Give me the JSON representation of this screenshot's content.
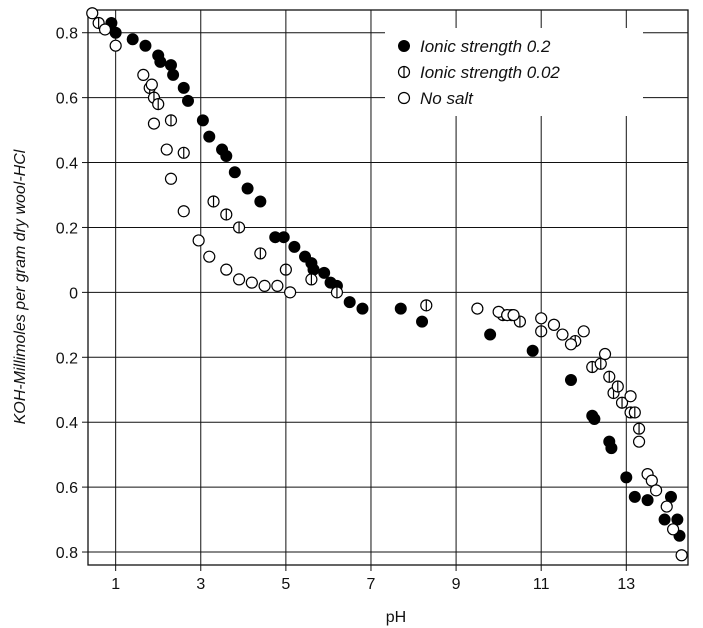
{
  "chart_data": {
    "type": "scatter",
    "xlabel": "pH",
    "ylabel": "KOH-Millimoles per gram dry wool-HCl",
    "xlim": [
      0.35,
      14.45
    ],
    "ylim": [
      -0.84,
      0.87
    ],
    "x_ticks": [
      {
        "value": 1,
        "label": "1"
      },
      {
        "value": 3,
        "label": "3"
      },
      {
        "value": 5,
        "label": "5"
      },
      {
        "value": 7,
        "label": "7"
      },
      {
        "value": 9,
        "label": "9"
      },
      {
        "value": 11,
        "label": "11"
      },
      {
        "value": 13,
        "label": "13"
      }
    ],
    "y_ticks": [
      {
        "value": 0.8,
        "label": "0.8"
      },
      {
        "value": 0.6,
        "label": "0.6"
      },
      {
        "value": 0.4,
        "label": "0.4"
      },
      {
        "value": 0.2,
        "label": "0.2"
      },
      {
        "value": 0,
        "label": "0"
      },
      {
        "value": -0.2,
        "label": "0.2"
      },
      {
        "value": -0.4,
        "label": "0.4"
      },
      {
        "value": -0.6,
        "label": "0.6"
      },
      {
        "value": -0.8,
        "label": "0.8"
      }
    ],
    "grid": true,
    "legend_position": "top-right",
    "series": [
      {
        "name": "Ionic strength 0.2",
        "marker": "filled",
        "x": [
          0.9,
          1.0,
          1.4,
          1.7,
          2.0,
          2.05,
          2.3,
          2.35,
          2.6,
          2.7,
          3.05,
          3.2,
          3.5,
          3.6,
          3.8,
          4.1,
          4.4,
          4.75,
          4.95,
          5.2,
          5.45,
          5.6,
          5.65,
          5.9,
          6.05,
          6.2,
          6.5,
          6.8,
          7.7,
          8.2,
          9.8,
          10.8,
          11.7,
          12.2,
          12.25,
          12.6,
          12.65,
          13.0,
          13.2,
          13.5,
          13.9,
          14.05,
          14.2,
          14.25
        ],
        "y": [
          0.83,
          0.8,
          0.78,
          0.76,
          0.73,
          0.71,
          0.7,
          0.67,
          0.63,
          0.59,
          0.53,
          0.48,
          0.44,
          0.42,
          0.37,
          0.32,
          0.28,
          0.17,
          0.17,
          0.14,
          0.11,
          0.09,
          0.07,
          0.06,
          0.03,
          0.02,
          -0.03,
          -0.05,
          -0.05,
          -0.09,
          -0.13,
          -0.18,
          -0.27,
          -0.38,
          -0.39,
          -0.46,
          -0.48,
          -0.57,
          -0.63,
          -0.64,
          -0.7,
          -0.63,
          -0.7,
          -0.75
        ]
      },
      {
        "name": "Ionic strength 0.02",
        "marker": "half",
        "x": [
          0.6,
          1.8,
          1.9,
          2.0,
          2.3,
          2.6,
          3.3,
          3.6,
          3.9,
          4.4,
          5.0,
          5.6,
          6.2,
          8.3,
          10.1,
          10.3,
          10.5,
          11.0,
          11.3,
          11.8,
          12.2,
          12.4,
          12.6,
          12.7,
          12.8,
          12.9,
          13.1,
          13.2,
          13.3
        ],
        "y": [
          0.83,
          0.63,
          0.6,
          0.58,
          0.53,
          0.43,
          0.28,
          0.24,
          0.2,
          0.12,
          0.07,
          0.04,
          0.0,
          -0.04,
          -0.07,
          -0.07,
          -0.09,
          -0.12,
          -0.1,
          -0.15,
          -0.23,
          -0.22,
          -0.26,
          -0.31,
          -0.29,
          -0.34,
          -0.37,
          -0.37,
          -0.42
        ]
      },
      {
        "name": "No salt",
        "marker": "open",
        "x": [
          0.45,
          0.75,
          1.0,
          1.65,
          1.85,
          1.9,
          2.2,
          2.3,
          2.6,
          2.95,
          3.2,
          3.6,
          3.9,
          4.2,
          4.5,
          4.8,
          5.1,
          9.5,
          10.0,
          10.2,
          10.35,
          11.0,
          11.3,
          11.5,
          11.7,
          12.0,
          12.5,
          13.1,
          13.3,
          13.5,
          13.6,
          13.7,
          13.95,
          14.1,
          14.3
        ],
        "y": [
          0.86,
          0.81,
          0.76,
          0.67,
          0.64,
          0.52,
          0.44,
          0.35,
          0.25,
          0.16,
          0.11,
          0.07,
          0.04,
          0.03,
          0.02,
          0.02,
          0.0,
          -0.05,
          -0.06,
          -0.07,
          -0.07,
          -0.08,
          -0.1,
          -0.13,
          -0.16,
          -0.12,
          -0.19,
          -0.32,
          -0.46,
          -0.56,
          -0.58,
          -0.61,
          -0.66,
          -0.73,
          -0.81
        ]
      }
    ]
  }
}
